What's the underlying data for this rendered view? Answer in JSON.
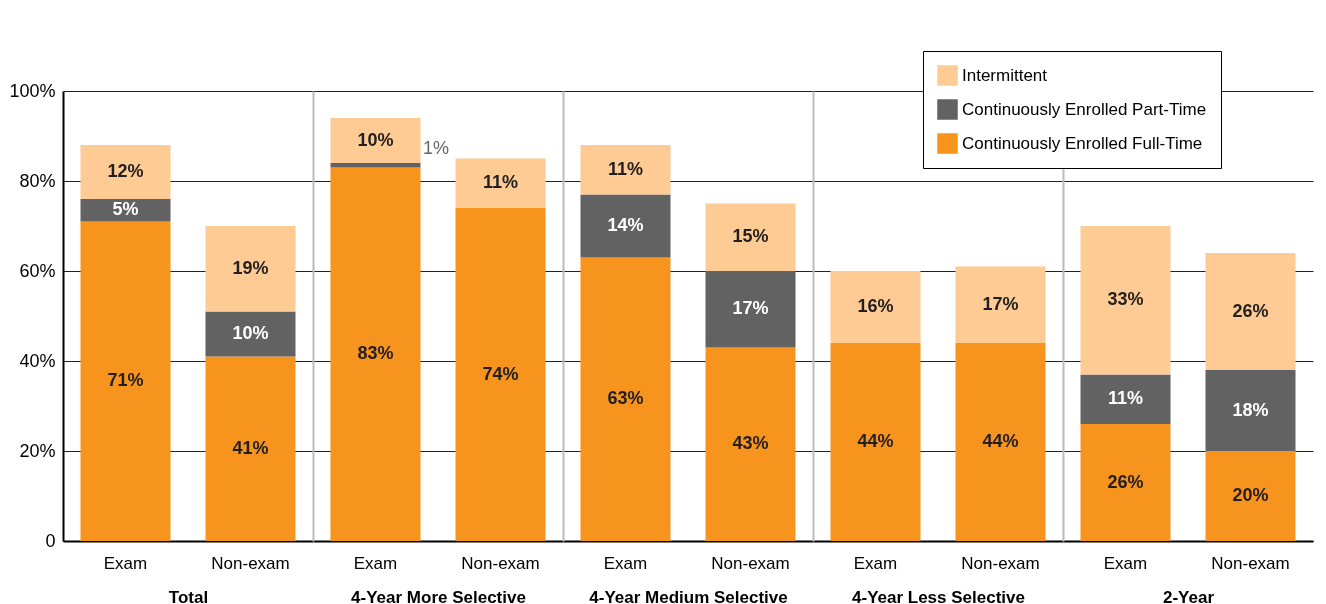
{
  "chart_data": [
    {
      "type": "bar",
      "stacked": true,
      "xlabel": "Total",
      "categories": [
        "Exam",
        "Non-exam"
      ],
      "ylim": [
        0,
        100
      ],
      "yticks": [
        {
          "value": 0,
          "label": "0"
        },
        {
          "value": 20,
          "label": "20%"
        },
        {
          "value": 40,
          "label": "40%"
        },
        {
          "value": 60,
          "label": "60%"
        },
        {
          "value": 80,
          "label": "80%"
        },
        {
          "value": 100,
          "label": "100%"
        }
      ],
      "grid": "y",
      "series": [
        {
          "color": "#f7941d",
          "values": [
            71,
            41
          ],
          "value_labels": [
            "71%",
            "41%"
          ]
        },
        {
          "color": "#626262",
          "values": [
            5,
            10
          ],
          "value_labels": [
            "5%",
            "10%"
          ]
        },
        {
          "color": "#fdcb93",
          "values": [
            12,
            19
          ],
          "value_labels": [
            "12%",
            "19%"
          ]
        }
      ]
    },
    {
      "type": "bar",
      "stacked": true,
      "xlabel": "4-Year More Selective",
      "categories": [
        "Exam",
        "Non-exam"
      ],
      "ylim": [
        0,
        100
      ],
      "yticks": [
        {
          "value": 0,
          "label": null
        },
        {
          "value": 20,
          "label": null
        },
        {
          "value": 40,
          "label": null
        },
        {
          "value": 60,
          "label": null
        },
        {
          "value": 80,
          "label": null
        },
        {
          "value": 100,
          "label": null
        }
      ],
      "grid": "y",
      "tick_labels": "x",
      "series": [
        {
          "color": "#f7941d",
          "values": [
            83,
            74
          ],
          "value_labels": [
            "83%",
            "74%"
          ]
        },
        {
          "color": "#626262",
          "values": [
            1,
            null
          ],
          "value_labels": [
            "1%",
            null
          ]
        },
        {
          "color": "#fdcb93",
          "values": [
            10,
            11
          ],
          "value_labels": [
            "10%",
            "11%"
          ]
        }
      ]
    },
    {
      "type": "bar",
      "stacked": true,
      "xlabel": "4-Year Medium Selective",
      "categories": [
        "Exam",
        "Non-exam"
      ],
      "ylim": [
        0,
        100
      ],
      "yticks": [
        {
          "value": 0,
          "label": null
        },
        {
          "value": 20,
          "label": null
        },
        {
          "value": 40,
          "label": null
        },
        {
          "value": 60,
          "label": null
        },
        {
          "value": 80,
          "label": null
        },
        {
          "value": 100,
          "label": null
        }
      ],
      "grid": "y",
      "tick_labels": "x",
      "series": [
        {
          "color": "#f7941d",
          "values": [
            63,
            43
          ],
          "value_labels": [
            "63%",
            "43%"
          ]
        },
        {
          "color": "#626262",
          "values": [
            14,
            17
          ],
          "value_labels": [
            "14%",
            "17%"
          ]
        },
        {
          "color": "#fdcb93",
          "values": [
            11,
            15
          ],
          "value_labels": [
            "11%",
            "15%"
          ]
        }
      ]
    },
    {
      "type": "bar",
      "stacked": true,
      "xlabel": "4-Year Less Selective",
      "categories": [
        "Exam",
        "Non-exam"
      ],
      "ylim": [
        0,
        100
      ],
      "yticks": [
        {
          "value": 0,
          "label": null
        },
        {
          "value": 20,
          "label": null
        },
        {
          "value": 40,
          "label": null
        },
        {
          "value": 60,
          "label": null
        },
        {
          "value": 80,
          "label": null
        },
        {
          "value": 100,
          "label": null
        }
      ],
      "grid": "y",
      "tick_labels": "x",
      "series": [
        {
          "color": "#f7941d",
          "values": [
            44,
            44
          ],
          "value_labels": [
            "44%",
            "44%"
          ]
        },
        {
          "color": "#626262",
          "values": [
            null,
            null
          ],
          "value_labels": [
            null,
            null
          ]
        },
        {
          "color": "#fdcb93",
          "values": [
            16,
            17
          ],
          "value_labels": [
            "16%",
            "17%"
          ]
        }
      ]
    },
    {
      "type": "bar",
      "stacked": true,
      "xlabel": "2-Year",
      "categories": [
        "Exam",
        "Non-exam"
      ],
      "ylim": [
        0,
        100
      ],
      "yticks": [
        {
          "value": 0,
          "label": null
        },
        {
          "value": 20,
          "label": null
        },
        {
          "value": 40,
          "label": null
        },
        {
          "value": 60,
          "label": null
        },
        {
          "value": 80,
          "label": null
        },
        {
          "value": 100,
          "label": null
        }
      ],
      "grid": "y",
      "legend": "top left",
      "tick_labels": "x",
      "series": [
        {
          "name": "Continuously Enrolled Full-Time",
          "color": "#f7941d",
          "values": [
            26,
            20
          ],
          "value_labels": [
            "26%",
            "20%"
          ]
        },
        {
          "name": "Continuously Enrolled Part-Time",
          "color": "#626262",
          "values": [
            11,
            18
          ],
          "value_labels": [
            "11%",
            "18%"
          ]
        },
        {
          "name": "Intermittent",
          "color": "#fdcb93",
          "values": [
            33,
            26
          ],
          "value_labels": [
            "33%",
            "26%"
          ]
        }
      ]
    }
  ]
}
